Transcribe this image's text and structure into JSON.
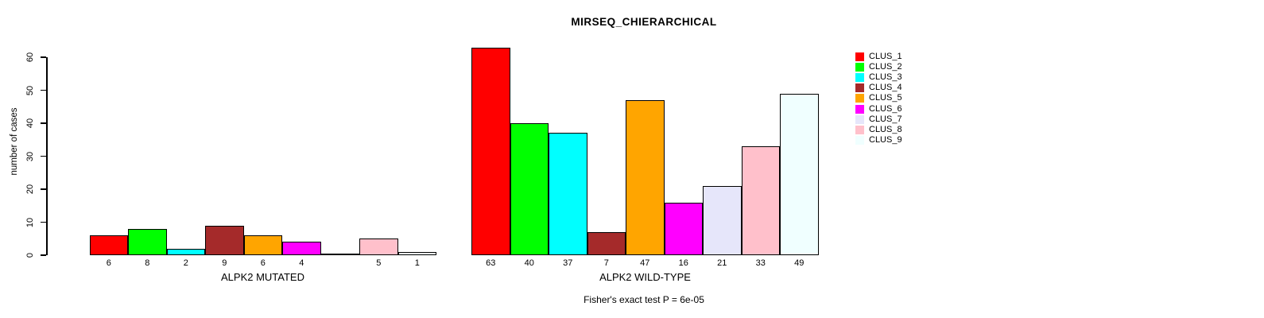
{
  "title": "MIRSEQ_CHIERARCHICAL",
  "chart_data": {
    "type": "bar",
    "title": "MIRSEQ_CHIERARCHICAL",
    "ylabel": "number of cases",
    "xlabel": "",
    "caption": "Fisher's exact test P = 6e-05",
    "ylim": [
      0,
      63
    ],
    "yticks": [
      0,
      10,
      20,
      30,
      40,
      50,
      60
    ],
    "grid": false,
    "legend_position": "right",
    "clusters": [
      "CLUS_1",
      "CLUS_2",
      "CLUS_3",
      "CLUS_4",
      "CLUS_5",
      "CLUS_6",
      "CLUS_7",
      "CLUS_8",
      "CLUS_9"
    ],
    "series_colors": [
      "#ff0000",
      "#00ff00",
      "#00ffff",
      "#a52a2a",
      "#ffa500",
      "#ff00ff",
      "#e6e6fa",
      "#ffc0cb",
      "#f0ffff"
    ],
    "groups": [
      {
        "label": "ALPK2 MUTATED",
        "values": [
          6,
          8,
          2,
          9,
          6,
          4,
          0,
          5,
          1
        ],
        "bar_labels": [
          "6",
          "8",
          "2",
          "9",
          "6",
          "4",
          "",
          "5",
          "1"
        ]
      },
      {
        "label": "ALPK2 WILD-TYPE",
        "values": [
          63,
          40,
          37,
          7,
          47,
          16,
          21,
          33,
          49
        ],
        "bar_labels": [
          "63",
          "40",
          "37",
          "7",
          "47",
          "16",
          "21",
          "33",
          "49"
        ]
      }
    ]
  }
}
